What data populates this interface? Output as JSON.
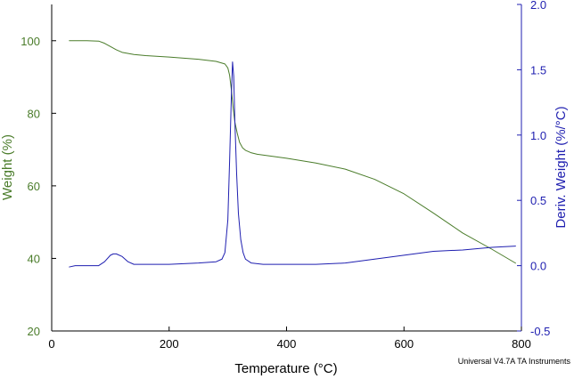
{
  "colors": {
    "weight": "#4a7c2a",
    "deriv": "#1f1fb0",
    "axis": "#000000"
  },
  "chart_data": {
    "type": "line",
    "title": "",
    "xlabel": "Temperature (°C)",
    "ylabel_left": "Weight (%)",
    "ylabel_right": "Deriv. Weight (%/°C)",
    "xlim": [
      0,
      800
    ],
    "ylim_left": [
      20,
      110
    ],
    "ylim_right": [
      -0.5,
      2.0
    ],
    "x_ticks": [
      0,
      200,
      400,
      600,
      800
    ],
    "x_tick_labels": [
      "0",
      "200",
      "400",
      "600",
      "800"
    ],
    "y_left_ticks": [
      20,
      40,
      60,
      80,
      100
    ],
    "y_left_tick_labels": [
      "20",
      "40",
      "60",
      "80",
      "100"
    ],
    "y_right_ticks": [
      -0.5,
      0.0,
      0.5,
      1.0,
      1.5,
      2.0
    ],
    "y_right_tick_labels": [
      "-0.5",
      "0.0",
      "0.5",
      "1.0",
      "1.5",
      "2.0"
    ],
    "grid": false,
    "footer": "Universal V4.7A TA Instruments",
    "series": [
      {
        "name": "Weight",
        "axis": "left",
        "x": [
          30,
          60,
          80,
          90,
          100,
          110,
          120,
          140,
          160,
          200,
          250,
          280,
          295,
          300,
          303,
          306,
          309,
          312,
          316,
          320,
          325,
          330,
          340,
          350,
          400,
          450,
          500,
          550,
          600,
          650,
          700,
          750,
          790
        ],
        "y": [
          100,
          100,
          99.9,
          99.3,
          98.4,
          97.5,
          96.8,
          96.2,
          95.9,
          95.5,
          94.9,
          94.3,
          93.6,
          92.5,
          90.5,
          86.5,
          81.5,
          77.5,
          74.5,
          72.0,
          70.5,
          69.8,
          69.1,
          68.7,
          67.6,
          66.3,
          64.6,
          61.8,
          57.8,
          52.5,
          47.0,
          42.5,
          38.7
        ]
      },
      {
        "name": "Deriv. Weight",
        "axis": "right",
        "x": [
          30,
          40,
          60,
          80,
          90,
          100,
          105,
          110,
          120,
          130,
          140,
          160,
          200,
          250,
          280,
          290,
          295,
          300,
          303,
          306,
          308,
          310,
          312,
          315,
          318,
          322,
          326,
          330,
          340,
          360,
          400,
          450,
          500,
          550,
          600,
          650,
          700,
          750,
          790
        ],
        "y": [
          -0.01,
          0.0,
          0.0,
          0.0,
          0.03,
          0.08,
          0.09,
          0.09,
          0.07,
          0.03,
          0.01,
          0.01,
          0.01,
          0.02,
          0.03,
          0.05,
          0.1,
          0.35,
          0.8,
          1.3,
          1.56,
          1.45,
          1.1,
          0.7,
          0.4,
          0.2,
          0.1,
          0.05,
          0.02,
          0.01,
          0.01,
          0.01,
          0.02,
          0.05,
          0.08,
          0.11,
          0.12,
          0.14,
          0.15
        ]
      }
    ]
  }
}
